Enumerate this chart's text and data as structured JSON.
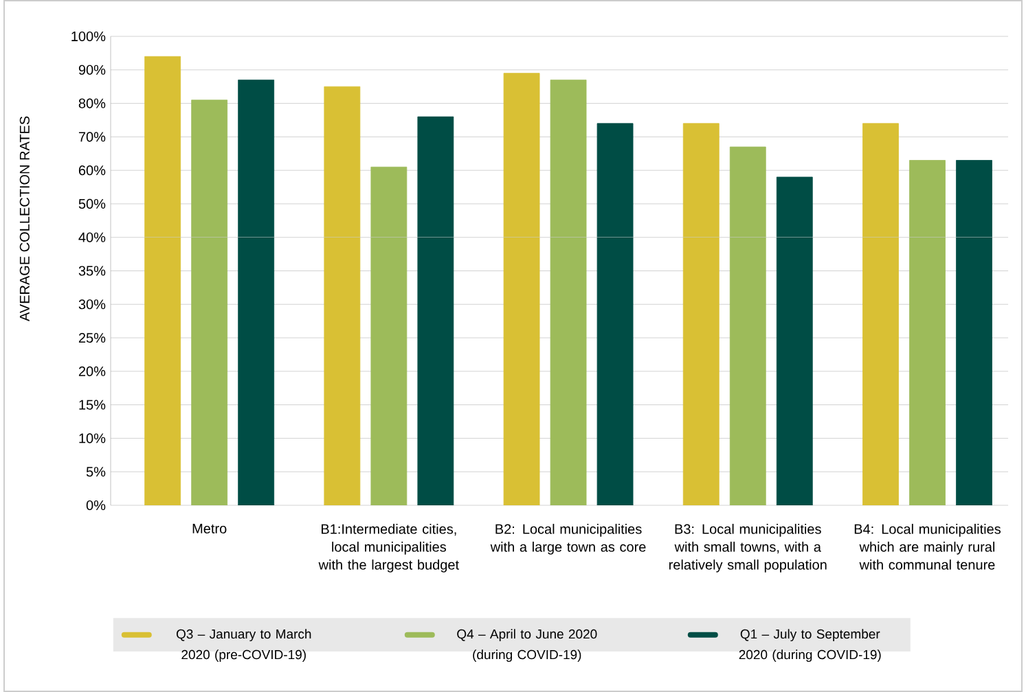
{
  "chart_data": [
    {
      "type": "bar",
      "tick_labels": "y",
      "categories": [
        null,
        null,
        null,
        null,
        null
      ],
      "series": [
        {
          "color": "#d9c034",
          "values": [
            94,
            85,
            89,
            74,
            74
          ]
        },
        {
          "color": "#9dbb5a",
          "values": [
            81,
            61,
            87,
            67,
            63
          ]
        },
        {
          "color": "#004d45",
          "values": [
            87,
            76,
            74,
            58,
            63
          ]
        }
      ],
      "ylim": [
        40,
        100
      ],
      "yticks": [
        {
          "value": 50,
          "label": "50%"
        },
        {
          "value": 60,
          "label": "60%"
        },
        {
          "value": 70,
          "label": "70%"
        },
        {
          "value": 80,
          "label": "80%"
        },
        {
          "value": 90,
          "label": "90%"
        },
        {
          "value": 100,
          "label": "100%"
        }
      ],
      "grid": "y"
    },
    {
      "type": "bar",
      "ylabel": "AVERAGE COLLECTION RATES",
      "categories": [
        "Metro",
        "B1:Intermediate cities, local municipalities with the largest budget",
        "B2: Local municipalities with a large town as core",
        "B3: Local municipalities with small towns, with a relatively small population",
        "B4: Local municipalities which are mainly rural with communal tenure"
      ],
      "series": [
        {
          "name": "Q3 – January to March 2020 (pre-COVID-19)",
          "color": "#d9c034",
          "values": [
            40,
            40,
            40,
            40,
            40
          ]
        },
        {
          "name": "Q4 – April to June 2020 (during COVID-19)",
          "color": "#9dbb5a",
          "values": [
            40,
            40,
            40,
            40,
            40
          ]
        },
        {
          "name": "Q1 – July to September 2020 (during COVID-19)",
          "color": "#004d45",
          "values": [
            40,
            40,
            40,
            40,
            40
          ]
        }
      ],
      "ylim": [
        0,
        40
      ],
      "yticks": [
        {
          "value": 0,
          "label": "0%"
        },
        {
          "value": 5,
          "label": "5%"
        },
        {
          "value": 10,
          "label": "10%"
        },
        {
          "value": 15,
          "label": "15%"
        },
        {
          "value": 20,
          "label": "20%"
        },
        {
          "value": 25,
          "label": "25%"
        },
        {
          "value": 30,
          "label": "30%"
        },
        {
          "value": 35,
          "label": "35%"
        },
        {
          "value": 40,
          "label": "40%"
        }
      ],
      "grid": "y",
      "legend": "bottom"
    }
  ]
}
